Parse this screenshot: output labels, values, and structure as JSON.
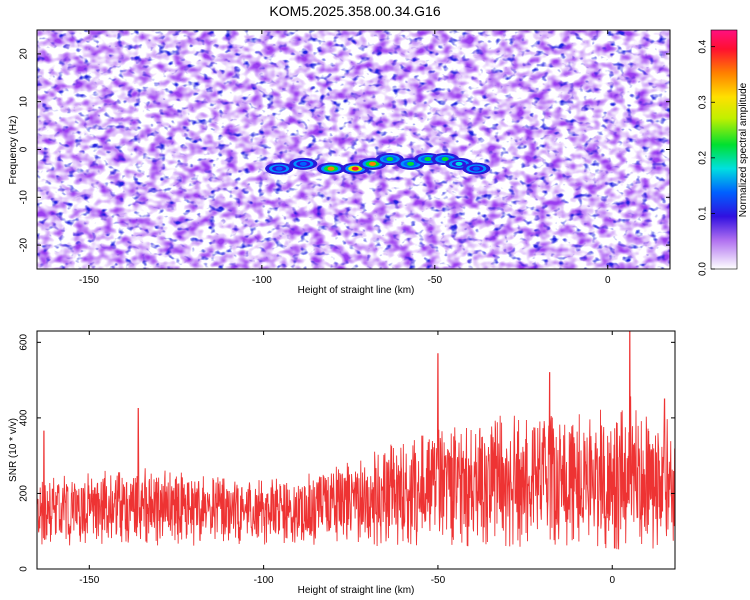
{
  "title": "KOM5.2025.358.00.34.G16",
  "chart_data": [
    {
      "type": "heatmap",
      "xlabel": "Height of straight line (km)",
      "ylabel": "Frequency (Hz)",
      "xlim": [
        -165,
        18
      ],
      "ylim": [
        -25,
        25
      ],
      "xticks": [
        -150,
        -100,
        -50,
        0
      ],
      "yticks": [
        -20,
        -10,
        0,
        10,
        20
      ],
      "colorbar": {
        "label": "Normalized spectral amplitude",
        "range": [
          0,
          0.43
        ],
        "ticks": [
          0,
          0.1,
          0.2,
          0.3,
          0.4
        ],
        "colors": [
          "#ffffff",
          "#8a2be2",
          "#0000ff",
          "#00ffff",
          "#00ff00",
          "#ffff00",
          "#ff8000",
          "#ff0000",
          "#ff00ff"
        ]
      },
      "hotspots": [
        {
          "x": -73,
          "y": -4,
          "value": 0.42
        },
        {
          "x": -80,
          "y": -4,
          "value": 0.38
        },
        {
          "x": -68,
          "y": -3,
          "value": 0.35
        },
        {
          "x": -63,
          "y": -2,
          "value": 0.25
        },
        {
          "x": -57,
          "y": -3,
          "value": 0.22
        },
        {
          "x": -52,
          "y": -2,
          "value": 0.24
        },
        {
          "x": -47,
          "y": -2,
          "value": 0.22
        },
        {
          "x": -43,
          "y": -3,
          "value": 0.2
        },
        {
          "x": -38,
          "y": -4,
          "value": 0.15
        },
        {
          "x": -88,
          "y": -3,
          "value": 0.15
        },
        {
          "x": -95,
          "y": -4,
          "value": 0.14
        }
      ]
    },
    {
      "type": "line",
      "xlabel": "Height of straight line (km)",
      "ylabel": "SNR (10 * v/v)",
      "xlim": [
        -165,
        18
      ],
      "ylim": [
        0,
        630
      ],
      "xticks": [
        -150,
        -100,
        -50,
        0
      ],
      "yticks": [
        0,
        200,
        400,
        600
      ],
      "series": [
        {
          "color": "#ee3333",
          "envelope": {
            "x": [
              -165,
              -150,
              -130,
              -110,
              -90,
              -70,
              -60,
              -50,
              -40,
              -30,
              -20,
              -10,
              -5,
              0,
              5,
              10,
              18
            ],
            "min": [
              60,
              60,
              60,
              60,
              60,
              60,
              60,
              60,
              55,
              55,
              60,
              60,
              60,
              50,
              50,
              50,
              50
            ],
            "max": [
              240,
              260,
              270,
              240,
              250,
              310,
              350,
              380,
              390,
              410,
              400,
              430,
              420,
              440,
              460,
              420,
              400
            ]
          },
          "peaks": [
            {
              "x": 5,
              "y": 630
            },
            {
              "x": -50,
              "y": 570
            },
            {
              "x": -18,
              "y": 520
            },
            {
              "x": -136,
              "y": 425
            },
            {
              "x": -163,
              "y": 365
            },
            {
              "x": 15,
              "y": 450
            }
          ]
        }
      ]
    }
  ]
}
